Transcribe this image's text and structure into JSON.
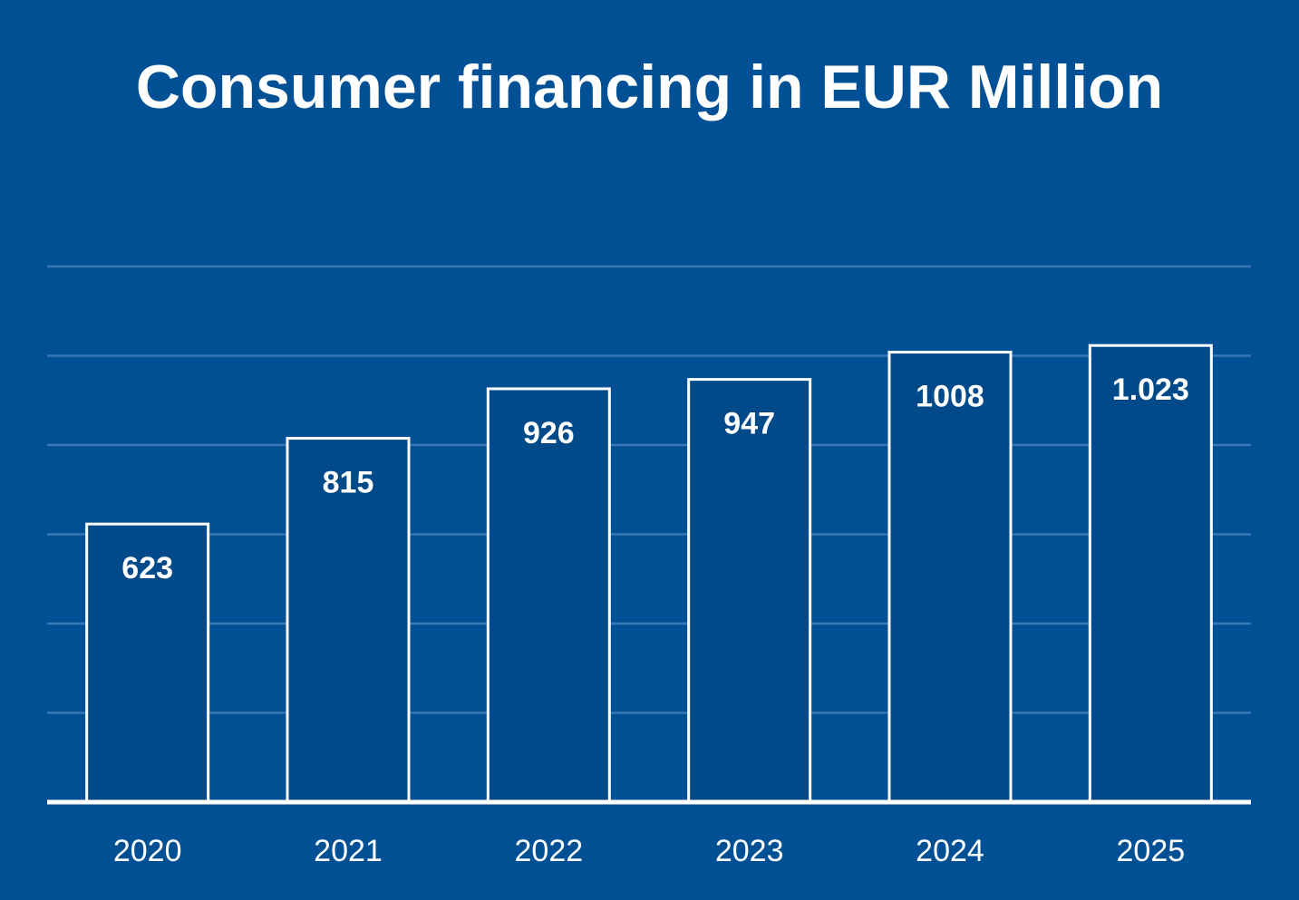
{
  "chart_data": {
    "type": "bar",
    "title": "Consumer financing in EUR Million",
    "xlabel": "",
    "ylabel": "",
    "categories": [
      "2020",
      "2021",
      "2022",
      "2023",
      "2024",
      "2025"
    ],
    "values": [
      623,
      815,
      926,
      947,
      1008,
      1023
    ],
    "value_labels": [
      "623",
      "815",
      "926",
      "947",
      "1008",
      "1.023"
    ],
    "ylim": [
      0,
      1200
    ],
    "grid": true,
    "legend": "none",
    "colors": {
      "background": "#005095",
      "bar_fill": "#004a8a",
      "bar_stroke": "#ffffff",
      "gridline": "#3a78b5",
      "text": "#ffffff"
    }
  }
}
